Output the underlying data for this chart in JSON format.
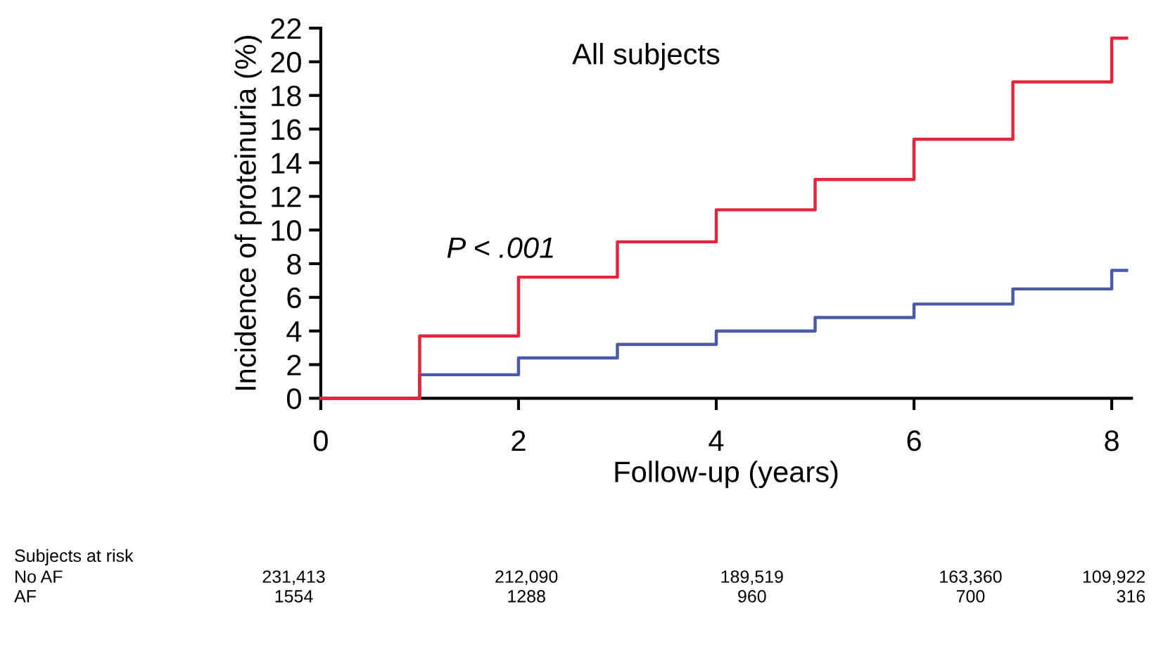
{
  "chart_data": {
    "type": "step",
    "title": "All subjects",
    "xlabel": "Follow-up (years)",
    "ylabel": "Incidence of proteinuria (%)",
    "x": [
      0,
      1,
      2,
      3,
      4,
      5,
      6,
      7,
      8,
      8.15
    ],
    "series": [
      {
        "color": "#4a5aa8",
        "values": [
          0,
          1.4,
          2.4,
          3.2,
          4.0,
          4.8,
          5.6,
          6.5,
          7.6,
          7.6
        ]
      },
      {
        "color": "#e8243c",
        "values": [
          0,
          3.7,
          7.2,
          9.3,
          11.2,
          13.0,
          15.4,
          18.8,
          21.4,
          21.4
        ]
      }
    ],
    "xlim": [
      0,
      8.2
    ],
    "xticks": [
      0,
      2,
      4,
      6,
      8
    ],
    "ylim": [
      0,
      22
    ],
    "yticks": [
      0,
      2,
      4,
      6,
      8,
      10,
      12,
      14,
      16,
      18,
      20,
      22
    ],
    "grid": false,
    "marker": "none",
    "line_style": "solid",
    "annotations": [
      "P < .001",
      "Subjects at risk",
      "No AF",
      "231,413",
      "212,090",
      "189,519",
      "163,360",
      "109,922",
      "AF",
      "1554",
      "1288",
      "960",
      "700",
      "316"
    ]
  }
}
